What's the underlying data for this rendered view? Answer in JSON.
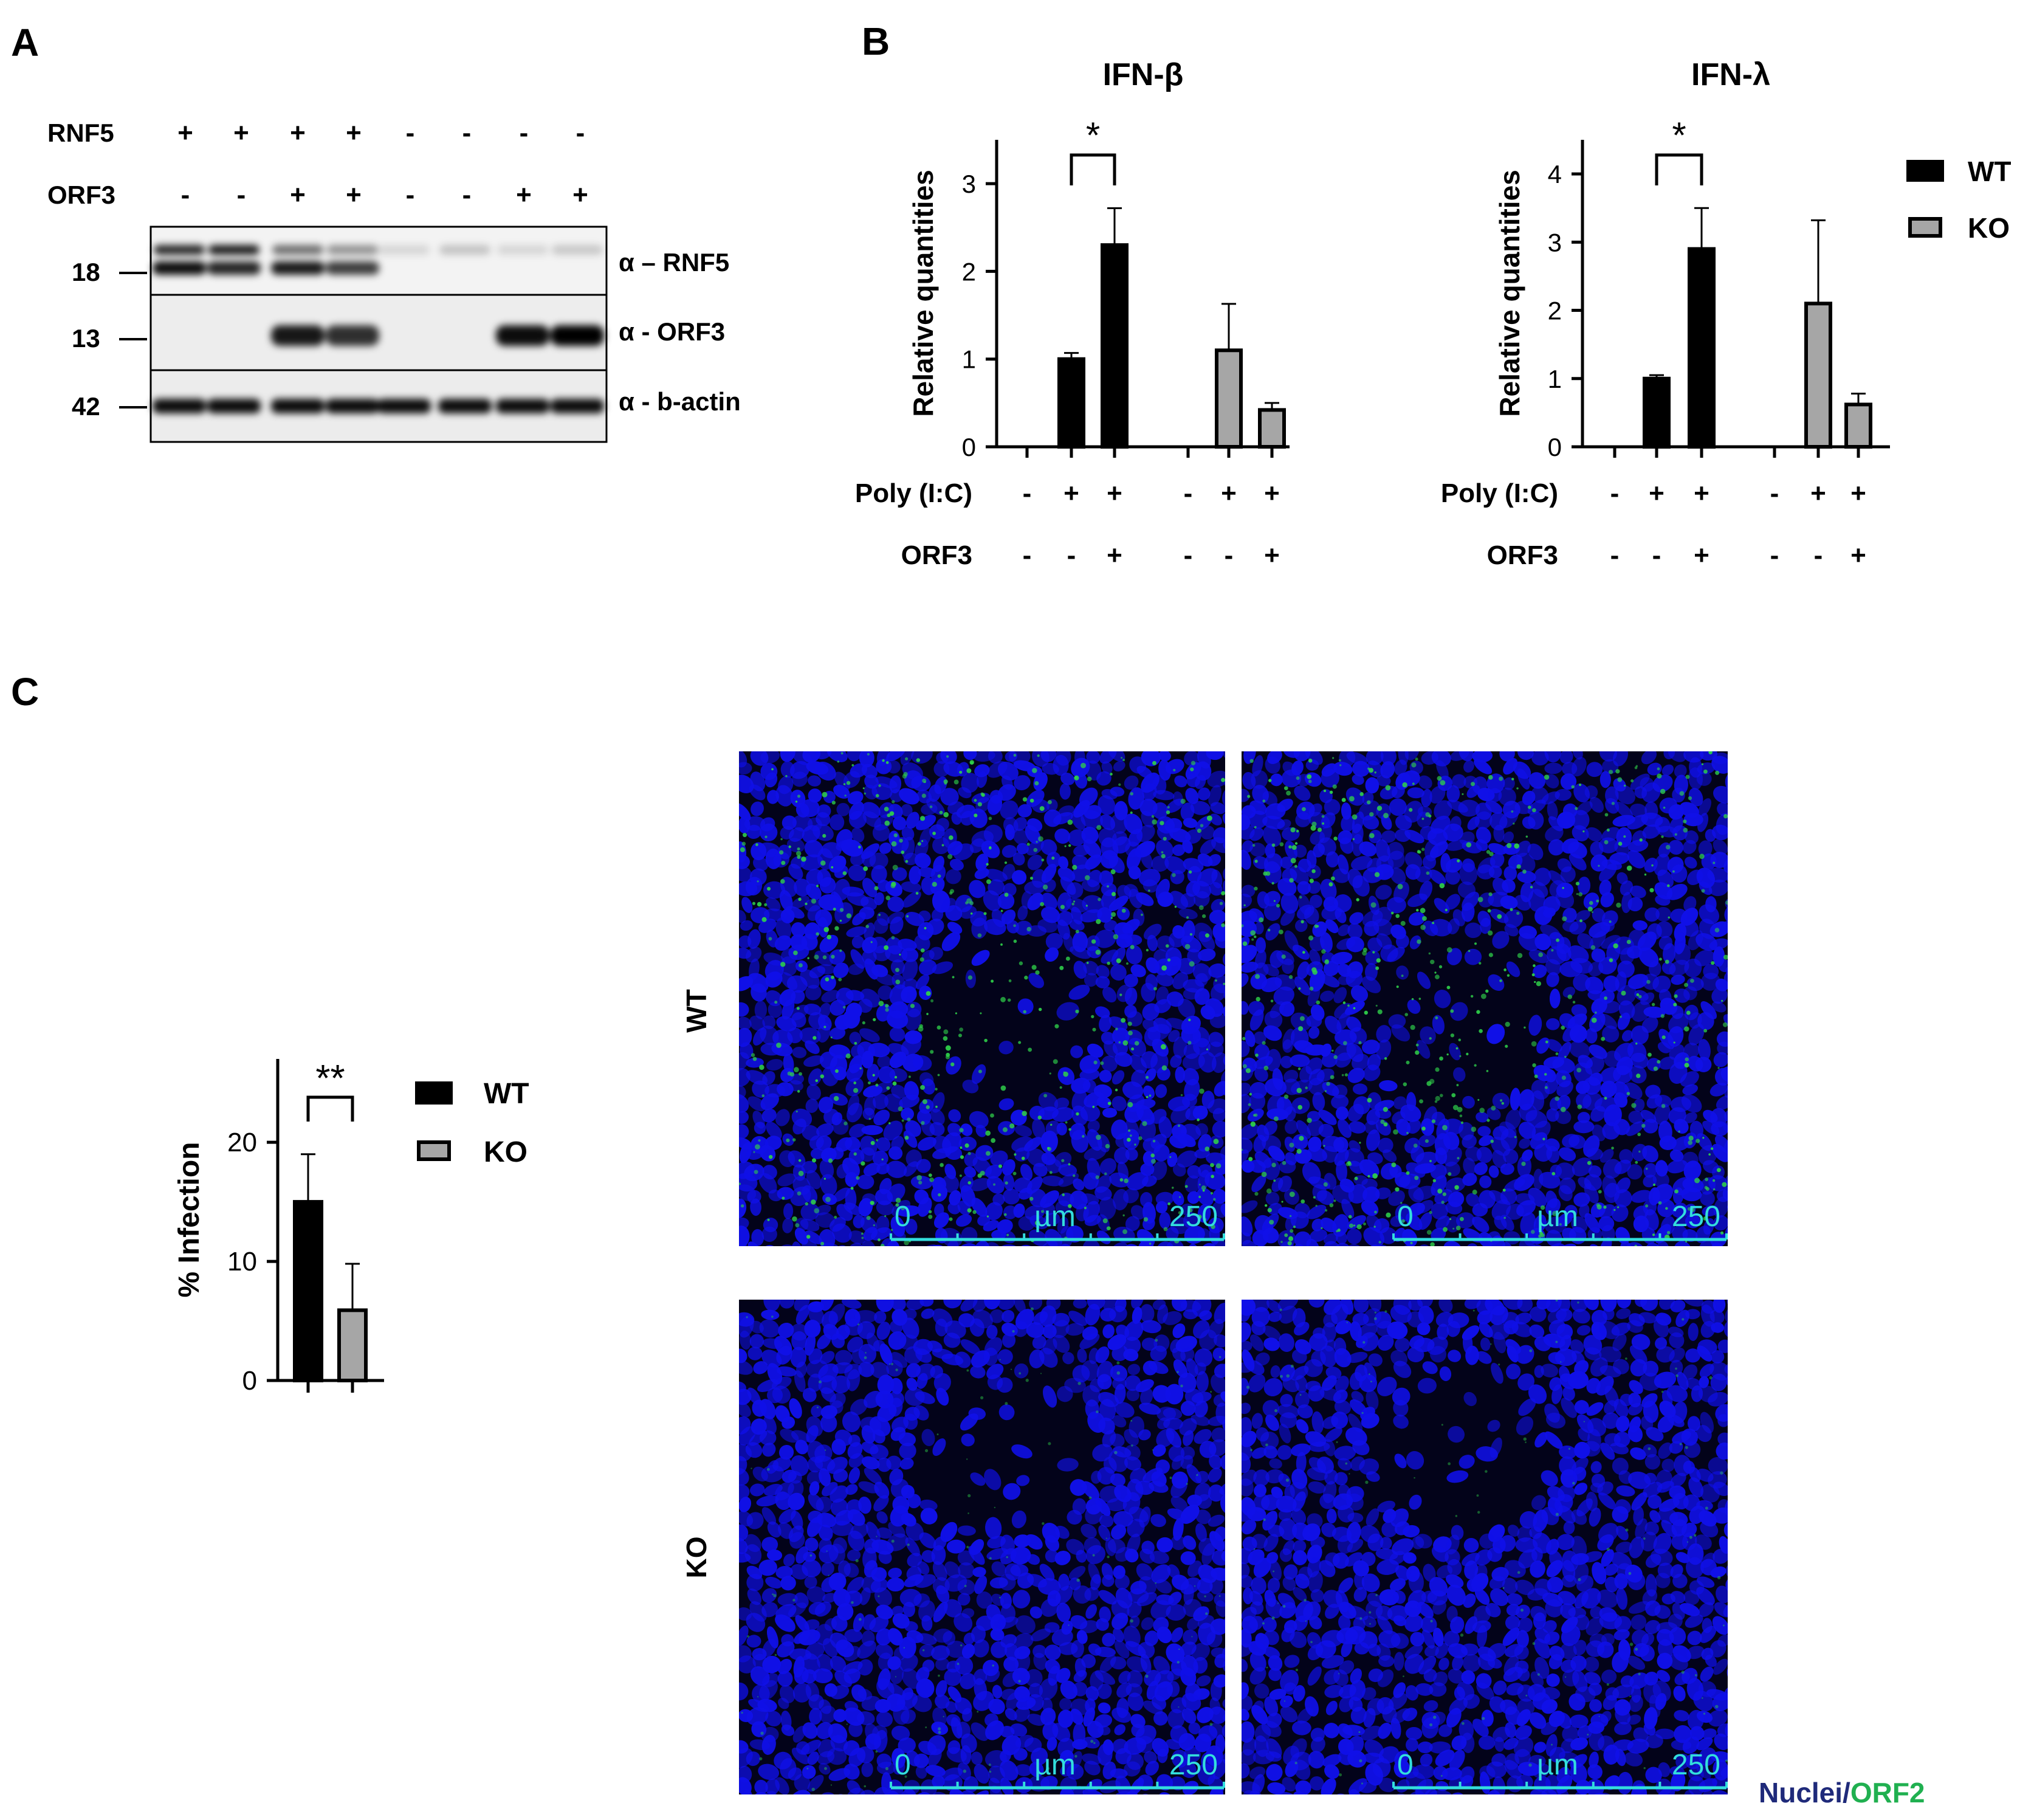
{
  "panels": {
    "a": "A",
    "b": "B",
    "c": "C"
  },
  "western": {
    "row_labels": [
      "RNF5",
      "ORF3"
    ],
    "rnf5_signs": [
      "+",
      "+",
      "+",
      "+",
      "-",
      "-",
      "-",
      "-"
    ],
    "orf3_signs": [
      "-",
      "-",
      "+",
      "+",
      "-",
      "-",
      "+",
      "+"
    ],
    "markers": [
      "18",
      "13",
      "42"
    ],
    "blot_labels": [
      "α – RNF5",
      "α - ORF3",
      "α - b-actin"
    ]
  },
  "legend": {
    "wt": "WT",
    "ko": "KO"
  },
  "colors": {
    "wt": "#000000",
    "ko": "#a6a6a6",
    "nuclei": "#1f2a7a",
    "orf2": "#20b050",
    "scale": "#33dddd",
    "nuclei_stain": "#1010e8",
    "orf2_stain": "#2fd04a"
  },
  "chart_data": [
    {
      "type": "bar",
      "title": "IFN-β",
      "ylabel": "Relative quantities",
      "ylim": [
        0,
        3.5
      ],
      "yticks": [
        "0",
        "1",
        "2",
        "3"
      ],
      "conditions": {
        "row1_label": "Poly (I:C)",
        "row1": [
          "-",
          "+",
          "+",
          "-",
          "+",
          "+"
        ],
        "row2_label": "ORF3",
        "row2": [
          "-",
          "-",
          "+",
          "-",
          "-",
          "+"
        ]
      },
      "series": [
        {
          "name": "WT",
          "values": [
            0,
            1.0,
            2.3
          ],
          "errors": [
            0,
            0.07,
            0.42
          ]
        },
        {
          "name": "KO",
          "values": [
            0,
            1.1,
            0.42
          ],
          "errors": [
            0,
            0.53,
            0.08
          ]
        }
      ],
      "significance": "*"
    },
    {
      "type": "bar",
      "title": "IFN-λ",
      "ylabel": "Relative quantities",
      "ylim": [
        0,
        4.5
      ],
      "yticks": [
        "0",
        "1",
        "2",
        "3",
        "4"
      ],
      "conditions": {
        "row1_label": "Poly (I:C)",
        "row1": [
          "-",
          "+",
          "+",
          "-",
          "+",
          "+"
        ],
        "row2_label": "ORF3",
        "row2": [
          "-",
          "-",
          "+",
          "-",
          "-",
          "+"
        ]
      },
      "series": [
        {
          "name": "WT",
          "values": [
            0,
            1.0,
            2.9
          ],
          "errors": [
            0,
            0.05,
            0.6
          ]
        },
        {
          "name": "KO",
          "values": [
            0,
            2.1,
            0.62
          ],
          "errors": [
            0,
            1.22,
            0.16
          ]
        }
      ],
      "significance": "*"
    },
    {
      "type": "bar",
      "ylabel": "% Infection",
      "ylim": [
        0,
        27
      ],
      "yticks": [
        "0",
        "10",
        "20"
      ],
      "categories": [
        "WT",
        "KO"
      ],
      "values": [
        15.0,
        5.9
      ],
      "errors": [
        4.0,
        3.9
      ],
      "significance": "**"
    }
  ],
  "microscopy": {
    "row_labels": [
      "WT",
      "KO"
    ],
    "scale": {
      "start": "0",
      "unit": "µm",
      "end": "250"
    },
    "caption": {
      "part1": "Nuclei",
      "sep": "/",
      "part2": "ORF2"
    }
  }
}
